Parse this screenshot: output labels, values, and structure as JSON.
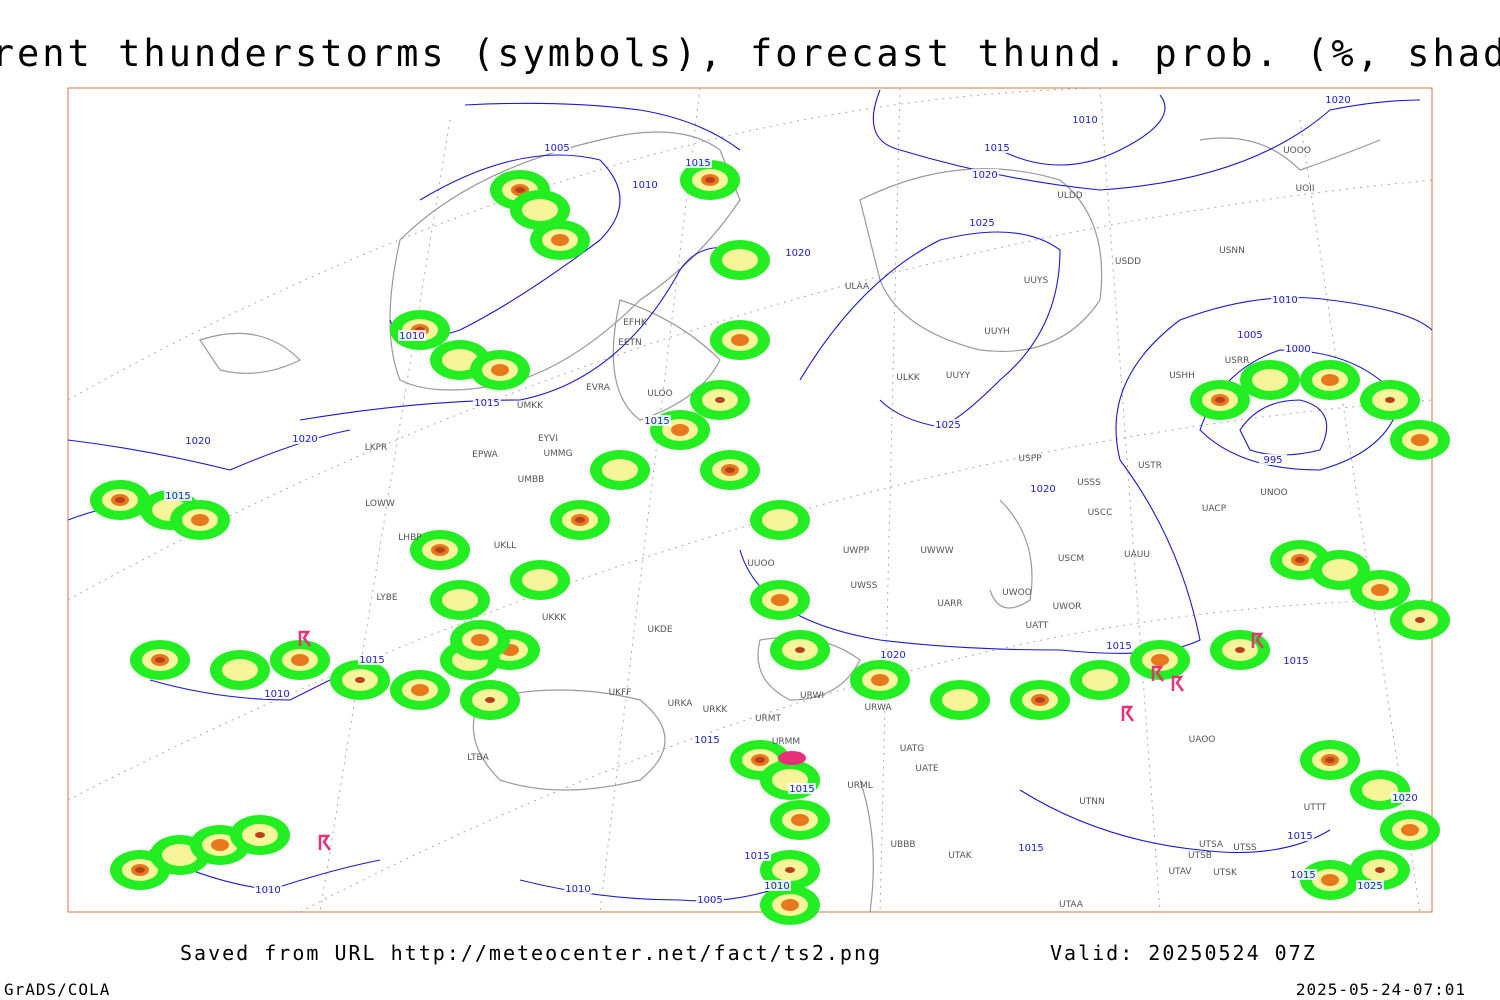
{
  "header": {
    "title": "Current thunderstorms (symbols), forecast thund. prob. (%, shaded)"
  },
  "isobar_labels": [
    1005,
    1015,
    1010,
    1020,
    1010,
    1015,
    1020,
    1025,
    1020,
    1010,
    1015,
    1015,
    1025,
    1020,
    1020,
    1015,
    1010,
    1005,
    1000,
    995,
    1020,
    1020,
    1015,
    1015,
    1015,
    1010,
    1015,
    1015,
    1015,
    1010,
    1010,
    1005,
    1010,
    1015,
    1020,
    1015,
    1015,
    1025
  ],
  "stations": [
    "ULDD",
    "UUYS",
    "UUYH",
    "ULAA",
    "ULKK",
    "UUYY",
    "EFHK",
    "EETN",
    "EVRA",
    "ULOO",
    "UMKK",
    "EYVI",
    "UMMG",
    "EPWA",
    "LKPR",
    "LOWW",
    "LHBP",
    "UMBB",
    "UKLL",
    "UKKK",
    "UKDE",
    "UKFF",
    "URKA",
    "URKK",
    "URMT",
    "URMM",
    "URWI",
    "URWA",
    "UATG",
    "UATE",
    "URML",
    "UTNN",
    "UBBB",
    "UTAK",
    "UTAA",
    "UWPP",
    "UWWW",
    "UWSS",
    "UARR",
    "UWOO",
    "UWOR",
    "UATT",
    "USCM",
    "UAUU",
    "USCC",
    "USSS",
    "USTR",
    "USPP",
    "USNN",
    "USDD",
    "UOOO",
    "UOII",
    "USRR",
    "USHH",
    "UNOO",
    "UACP",
    "UAOO",
    "UTSA",
    "UTSB",
    "UTAV",
    "UTSK",
    "UTTT",
    "UTSS",
    "LTBA",
    "LYBE",
    "UUOO"
  ],
  "footer": {
    "source": "Saved from URL http://meteocenter.net/fact/ts2.png",
    "valid": "Valid: 20250524 07Z",
    "software": "GrADS/COLA",
    "timestamp": "2025-05-24-07:01"
  }
}
